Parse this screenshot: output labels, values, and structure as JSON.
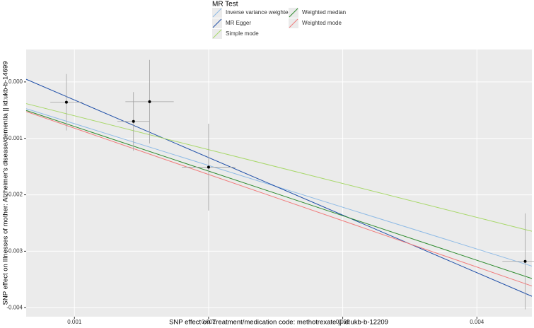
{
  "chart_data": {
    "type": "scatter",
    "x_label": "SNP effect on Treatment/medication code: methotrexate || id:ukb-b-12209",
    "y_label": "SNP effect on Illnesses of mother: Alzheimer's disease/dementia || id:ukb-b-14699",
    "x": [
      0.00094,
      0.00144,
      0.00156,
      0.002,
      0.00436
    ],
    "y": [
      -0.00036,
      -0.0007,
      -0.00035,
      -0.00151,
      -0.00318
    ],
    "x_err": [
      0.00012,
      0.00012,
      0.00018,
      0.0002,
      0.00017
    ],
    "y_err": [
      0.0005,
      0.00052,
      0.00074,
      0.00077,
      0.00085
    ],
    "point_color": "#000000",
    "error_color": "#a0a0a0",
    "xlim": [
      0.00064,
      0.00441
    ],
    "ylim": [
      -0.00416,
      0.000575
    ],
    "xticks": [
      0.001,
      0.002,
      0.003,
      0.004
    ],
    "yticks": [
      {
        "value": 0,
        "label": "0.000"
      },
      -0.001,
      -0.002,
      -0.003,
      -0.004
    ],
    "grid": true,
    "legend_title": "MR Test",
    "lines": [
      {
        "name": "Inverse variance weighted",
        "color": "#8fbbe6",
        "intercept": 0,
        "slope": -0.74
      },
      {
        "name": "MR Egger",
        "color": "#1f4fa8",
        "intercept": 0.0007,
        "slope": -1.02
      },
      {
        "name": "Simple mode",
        "color": "#a8d86a",
        "intercept": 0,
        "slope": -0.6
      },
      {
        "name": "Weighted median",
        "color": "#2e8b2e",
        "intercept": 0,
        "slope": -0.79
      },
      {
        "name": "Weighted mode",
        "color": "#f07c7c",
        "intercept": 0,
        "slope": -0.82
      }
    ]
  }
}
